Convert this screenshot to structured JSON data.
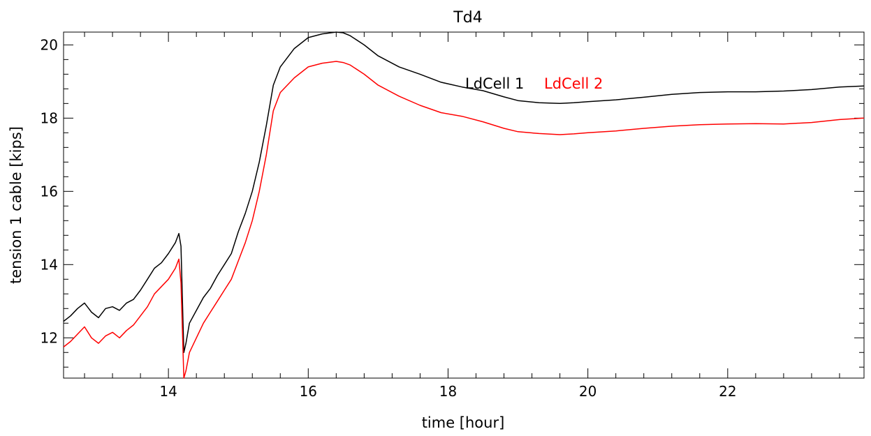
{
  "chart_data": {
    "type": "line",
    "title": "Td4",
    "xlabel": "time [hour]",
    "ylabel": "tension 1 cable [kips]",
    "xlim": [
      12.5,
      23.95
    ],
    "ylim": [
      10.9,
      20.35
    ],
    "xticks": [
      14,
      16,
      18,
      20,
      22
    ],
    "yticks": [
      12,
      14,
      16,
      18,
      20
    ],
    "x_minor_step": 0.4,
    "y_minor_step": 0.4,
    "grid": false,
    "legend": [
      {
        "label": "LdCell 1",
        "color": "#000000"
      },
      {
        "label": "LdCell 2",
        "color": "#ff0000"
      }
    ],
    "series": [
      {
        "name": "LdCell 1",
        "color": "#000000",
        "x": [
          12.5,
          12.6,
          12.7,
          12.8,
          12.9,
          13.0,
          13.1,
          13.2,
          13.3,
          13.4,
          13.5,
          13.6,
          13.7,
          13.8,
          13.9,
          14.0,
          14.1,
          14.15,
          14.18,
          14.22,
          14.25,
          14.3,
          14.4,
          14.5,
          14.6,
          14.7,
          14.8,
          14.9,
          15.0,
          15.1,
          15.2,
          15.3,
          15.4,
          15.5,
          15.6,
          15.8,
          16.0,
          16.2,
          16.4,
          16.5,
          16.6,
          16.8,
          17.0,
          17.3,
          17.6,
          17.9,
          18.2,
          18.5,
          18.8,
          19.0,
          19.3,
          19.6,
          19.8,
          20.0,
          20.4,
          20.8,
          21.2,
          21.6,
          22.0,
          22.4,
          22.8,
          23.2,
          23.6,
          23.95
        ],
        "y": [
          12.45,
          12.6,
          12.8,
          12.95,
          12.7,
          12.55,
          12.8,
          12.85,
          12.75,
          12.95,
          13.05,
          13.3,
          13.6,
          13.9,
          14.05,
          14.3,
          14.6,
          14.85,
          14.5,
          11.6,
          11.85,
          12.4,
          12.75,
          13.1,
          13.35,
          13.7,
          14.0,
          14.3,
          14.9,
          15.4,
          16.0,
          16.8,
          17.8,
          18.9,
          19.4,
          19.9,
          20.2,
          20.3,
          20.35,
          20.33,
          20.25,
          20.0,
          19.7,
          19.4,
          19.2,
          18.98,
          18.85,
          18.75,
          18.58,
          18.48,
          18.42,
          18.4,
          18.42,
          18.45,
          18.5,
          18.57,
          18.65,
          18.7,
          18.72,
          18.72,
          18.74,
          18.78,
          18.85,
          18.88
        ]
      },
      {
        "name": "LdCell 2",
        "color": "#ff0000",
        "x": [
          12.5,
          12.6,
          12.7,
          12.8,
          12.9,
          13.0,
          13.1,
          13.2,
          13.3,
          13.4,
          13.5,
          13.6,
          13.7,
          13.8,
          13.9,
          14.0,
          14.1,
          14.15,
          14.18,
          14.22,
          14.25,
          14.3,
          14.4,
          14.5,
          14.6,
          14.7,
          14.8,
          14.9,
          15.0,
          15.1,
          15.2,
          15.3,
          15.4,
          15.5,
          15.6,
          15.8,
          16.0,
          16.2,
          16.4,
          16.5,
          16.6,
          16.8,
          17.0,
          17.3,
          17.6,
          17.9,
          18.2,
          18.5,
          18.8,
          19.0,
          19.3,
          19.6,
          19.8,
          20.0,
          20.4,
          20.8,
          21.2,
          21.6,
          22.0,
          22.4,
          22.8,
          23.2,
          23.6,
          23.95
        ],
        "y": [
          11.75,
          11.9,
          12.1,
          12.3,
          12.0,
          11.85,
          12.05,
          12.15,
          12.0,
          12.2,
          12.35,
          12.6,
          12.85,
          13.2,
          13.4,
          13.6,
          13.9,
          14.15,
          13.5,
          10.9,
          11.1,
          11.6,
          12.0,
          12.4,
          12.7,
          13.0,
          13.3,
          13.6,
          14.1,
          14.6,
          15.2,
          16.0,
          17.0,
          18.2,
          18.7,
          19.1,
          19.4,
          19.5,
          19.55,
          19.52,
          19.45,
          19.2,
          18.9,
          18.6,
          18.35,
          18.15,
          18.05,
          17.9,
          17.72,
          17.63,
          17.58,
          17.55,
          17.57,
          17.6,
          17.65,
          17.72,
          17.78,
          17.82,
          17.84,
          17.85,
          17.84,
          17.88,
          17.96,
          18.0
        ]
      }
    ]
  }
}
